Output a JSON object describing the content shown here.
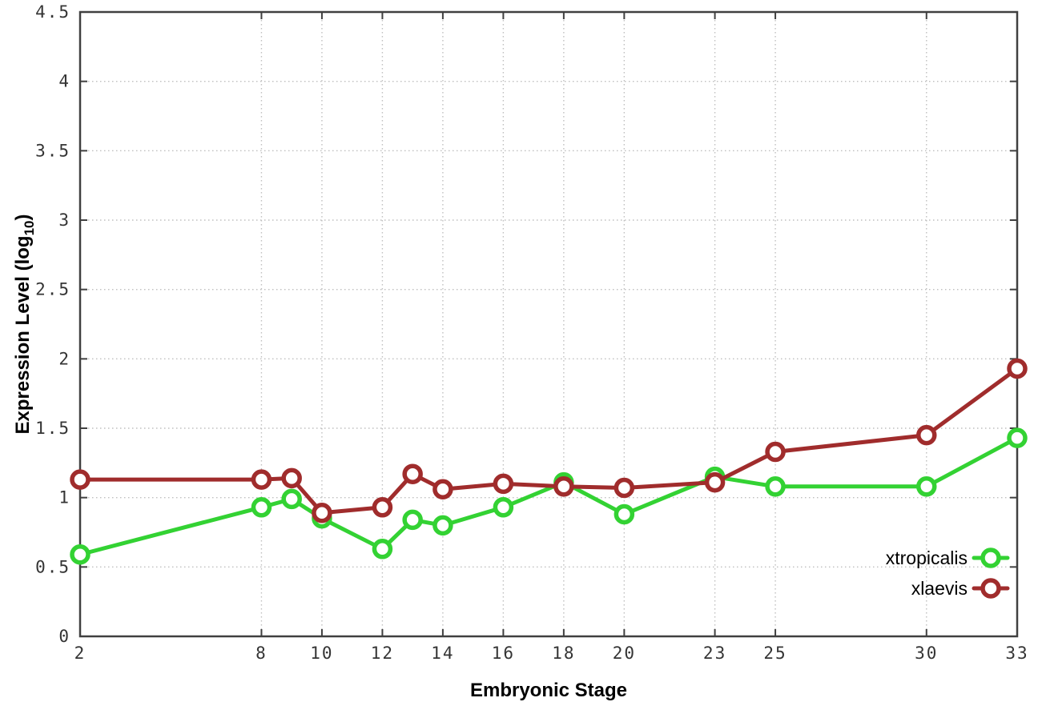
{
  "chart_data": {
    "type": "line",
    "title": "",
    "xlabel": "Embryonic Stage",
    "ylabel_plain": "Expression Level (log10)",
    "ylabel_parts": [
      {
        "t": "Expression Level (log"
      },
      {
        "t": "10",
        "sub": true
      },
      {
        "t": ")"
      }
    ],
    "xlim": [
      2,
      33
    ],
    "ylim": [
      0,
      4.5
    ],
    "x_ticks": [
      2,
      8,
      10,
      12,
      14,
      16,
      18,
      20,
      23,
      25,
      30,
      33
    ],
    "x_tick_labels": [
      "2",
      "8",
      "10",
      "12",
      "14",
      "16",
      "18",
      "20",
      "23",
      "25",
      "30",
      "33"
    ],
    "y_ticks": [
      0,
      0.5,
      1,
      1.5,
      2,
      2.5,
      3,
      3.5,
      4,
      4.5
    ],
    "y_tick_labels": [
      "0",
      "0.5",
      "1",
      "1.5",
      "2",
      "2.5",
      "3",
      "3.5",
      "4",
      "4.5"
    ],
    "grid": true,
    "legend_position": "inside-bottom-right",
    "x": [
      2,
      8,
      9,
      10,
      12,
      13,
      14,
      16,
      18,
      20,
      23,
      25,
      30,
      33
    ],
    "series": [
      {
        "name": "xtropicalis",
        "color": "#33d233",
        "values": [
          0.59,
          0.93,
          0.99,
          0.85,
          0.63,
          0.84,
          0.8,
          0.93,
          1.11,
          0.88,
          1.15,
          1.08,
          1.08,
          1.43
        ]
      },
      {
        "name": "xlaevis",
        "color": "#a02c2c",
        "values": [
          1.13,
          1.13,
          1.14,
          0.89,
          0.93,
          1.17,
          1.06,
          1.1,
          1.08,
          1.07,
          1.11,
          1.33,
          1.45,
          1.93
        ]
      }
    ],
    "colors": {
      "border": "#404040",
      "grid": "#bfbfbf",
      "tick_text": "#343434",
      "title_text": "#000000",
      "legend_text": "#000000",
      "marker_fill": "#ffffff"
    }
  }
}
